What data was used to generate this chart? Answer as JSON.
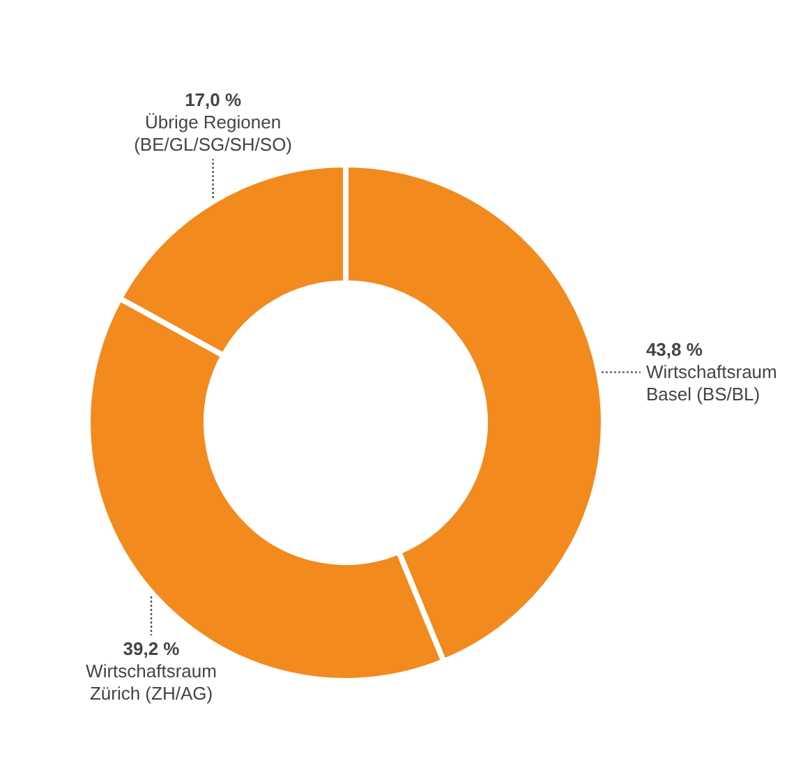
{
  "chart_data": {
    "type": "donut",
    "categories": [
      "Wirtschaftsraum Basel (BS/BL)",
      "Wirtschaftsraum Zürich (ZH/AG)",
      "Übrige Regionen (BE/GL/SG/SH/SO)"
    ],
    "values": [
      43.8,
      39.2,
      17.0
    ],
    "value_labels": [
      "43,8 %",
      "39,2 %",
      "17,0 %"
    ],
    "colors": [
      "#f28a1e",
      "#f28a1e",
      "#f28a1e"
    ],
    "legend": false
  }
}
